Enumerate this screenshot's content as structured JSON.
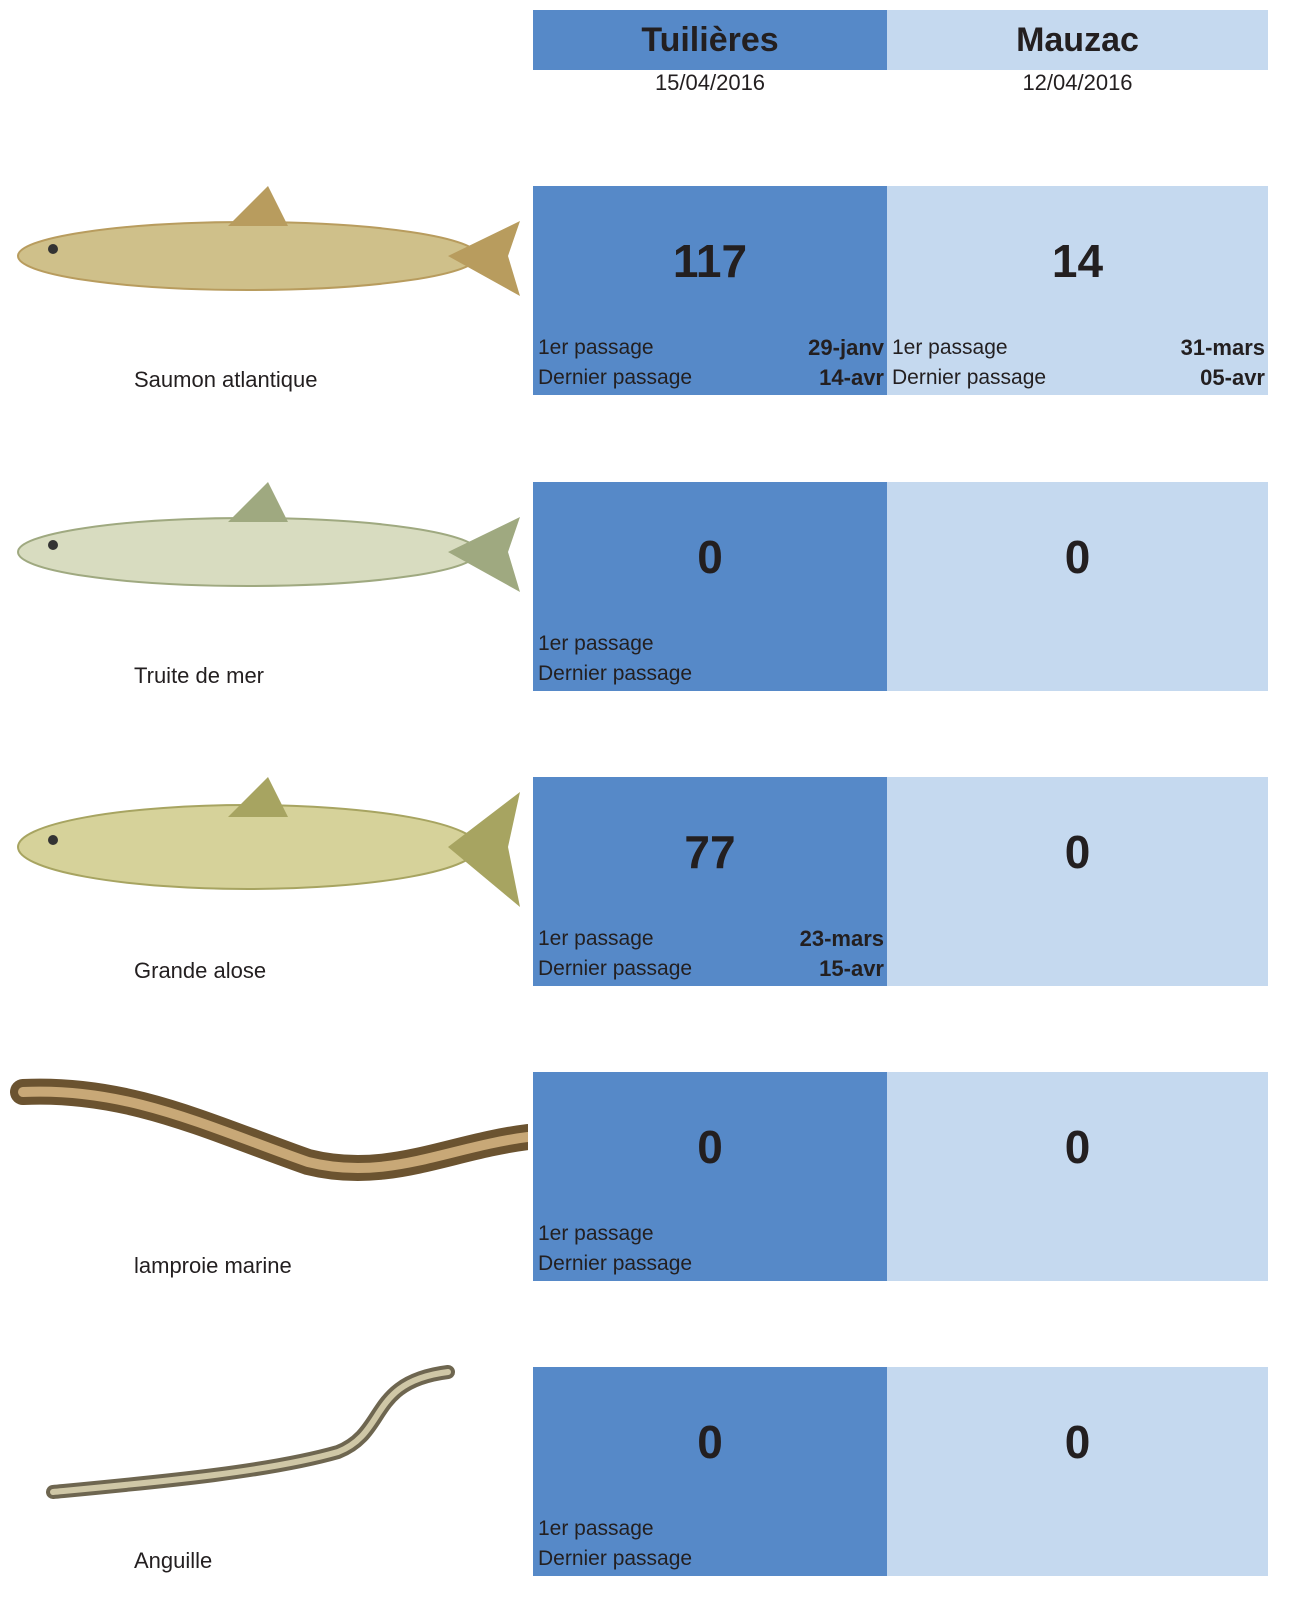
{
  "stations": [
    {
      "name": "Tuilières",
      "date": "15/04/2016"
    },
    {
      "name": "Mauzac",
      "date": "12/04/2016"
    }
  ],
  "species": [
    {
      "name": "Saumon atlantique",
      "cells": [
        {
          "count": 117,
          "first_label": "1er passage",
          "first": "29-janv",
          "last_label": "Dernier passage",
          "last": "14-avr"
        },
        {
          "count": 14,
          "first_label": "1er passage",
          "first": "31-mars",
          "last_label": "Dernier passage",
          "last": "05-avr"
        }
      ]
    },
    {
      "name": "Truite de mer",
      "cells": [
        {
          "count": 0,
          "first_label": "1er passage",
          "last_label": "Dernier passage"
        },
        {
          "count": 0
        }
      ]
    },
    {
      "name": "Grande alose",
      "cells": [
        {
          "count": 77,
          "first_label": "1er passage",
          "first": "23-mars",
          "last_label": "Dernier passage",
          "last": "15-avr"
        },
        {
          "count": 0
        }
      ]
    },
    {
      "name": "lamproie marine",
      "cells": [
        {
          "count": 0,
          "first_label": "1er passage",
          "last_label": "Dernier passage"
        },
        {
          "count": 0
        }
      ]
    },
    {
      "name": "Anguille",
      "cells": [
        {
          "count": 0,
          "first_label": "1er passage",
          "last_label": "Dernier passage"
        },
        {
          "count": 0
        }
      ]
    }
  ]
}
